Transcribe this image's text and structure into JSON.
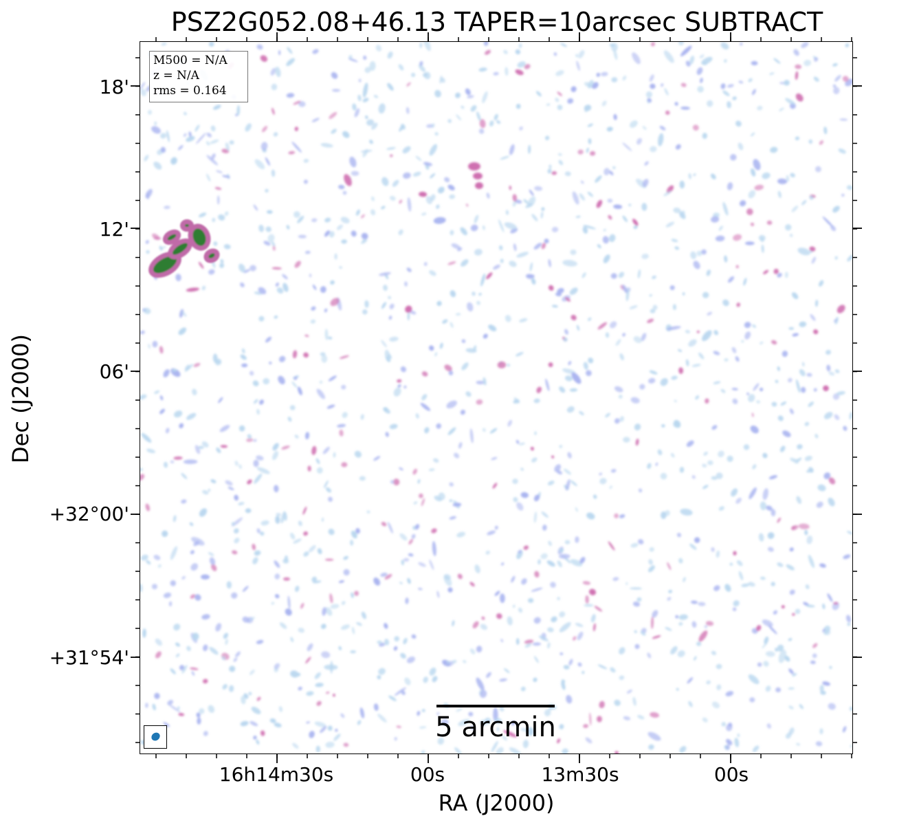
{
  "title": "PSZ2G052.08+46.13 TAPER=10arcsec SUBTRACT",
  "info_box": {
    "m500": "M500 = N/A",
    "z": "z = N/A",
    "rms": "rms = 0.164"
  },
  "scale_bar": {
    "label": "5 arcmin"
  },
  "axes": {
    "xlabel": "RA (J2000)",
    "ylabel": "Dec (J2000)",
    "xticks": [
      "16h14m30s",
      "00s",
      "13m30s",
      "00s"
    ],
    "yticks": [
      "18'",
      "12'",
      "06'",
      "+32°00'",
      "+31°54'"
    ]
  },
  "colors": {
    "noise_light": "#b9d7ef",
    "noise_mid": "#a9b4f0",
    "noise_peak": "#cf6fb0",
    "source_core": "#2e7d32",
    "source_rim": "#c06aa8",
    "beam": "#1f77b4"
  }
}
